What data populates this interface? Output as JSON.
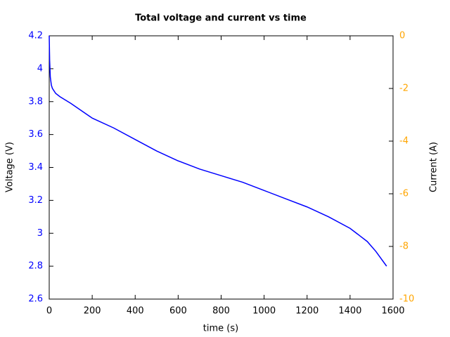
{
  "chart_data": {
    "type": "line",
    "title": "Total voltage and current vs time",
    "x_label": "time (s)",
    "y_label": "Voltage (V)",
    "y2_label": "Current (A)",
    "x": [
      0,
      2,
      5,
      10,
      15,
      30,
      50,
      100,
      200,
      300,
      400,
      500,
      600,
      700,
      800,
      900,
      1000,
      1100,
      1200,
      1300,
      1400,
      1450,
      1480,
      1520,
      1570
    ],
    "series": [
      {
        "name": "Voltage",
        "color": "#0000ff",
        "values": [
          4.2,
          4.05,
          3.95,
          3.9,
          3.88,
          3.85,
          3.83,
          3.79,
          3.7,
          3.64,
          3.57,
          3.5,
          3.44,
          3.39,
          3.35,
          3.31,
          3.26,
          3.21,
          3.16,
          3.1,
          3.03,
          2.98,
          2.95,
          2.89,
          2.8
        ]
      }
    ],
    "xlim": [
      0,
      1600
    ],
    "xticks": [
      0,
      200,
      400,
      600,
      800,
      1000,
      1200,
      1400,
      1600
    ],
    "ylim": [
      2.6,
      4.2
    ],
    "yticks": [
      2.6,
      2.8,
      3,
      3.2,
      3.4,
      3.6,
      3.8,
      4,
      4.2
    ],
    "y2lim": [
      -10,
      0
    ],
    "y2ticks": [
      -10,
      -8,
      -6,
      -4,
      -2,
      0
    ],
    "y_color": "#0000ff",
    "y2_color": "#ffa500",
    "grid": false
  }
}
